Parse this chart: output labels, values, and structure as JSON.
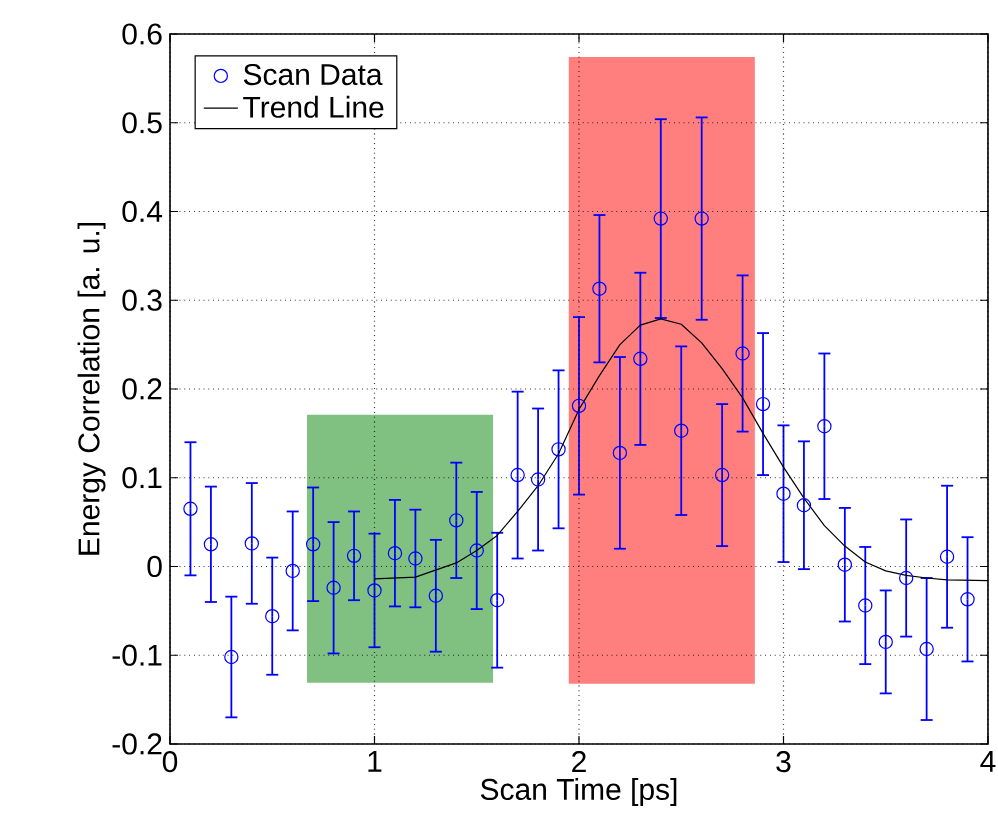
{
  "chart_data": {
    "type": "scatter",
    "xlabel": "Scan Time [ps]",
    "ylabel": "Energy Correlation [a. u.]",
    "xlim": [
      0,
      4
    ],
    "ylim": [
      -0.2,
      0.6
    ],
    "xticks": [
      0,
      1,
      2,
      3,
      4
    ],
    "yticks": [
      -0.2,
      -0.1,
      0,
      0.1,
      0.2,
      0.3,
      0.4,
      0.5,
      0.6
    ],
    "grid": true,
    "legend": "top left",
    "series": [
      {
        "type": "line",
        "color": "#80c080",
        "x": [
          0.67,
          1.58
        ],
        "values": [
          null,
          null
        ],
        "lower": [
          -0.131,
          -0.131
        ],
        "upper": [
          0.171,
          0.171
        ]
      },
      {
        "type": "line",
        "color": "#ff7f7f",
        "x": [
          1.95,
          2.86
        ],
        "values": [
          null,
          null
        ],
        "lower": [
          -0.132,
          -0.132
        ],
        "upper": [
          0.574,
          0.574
        ]
      },
      {
        "name": "Scan Data",
        "color": "#0000ff",
        "marker": "circle",
        "x": [
          0.1,
          0.2,
          0.3,
          0.4,
          0.5,
          0.6,
          0.7,
          0.8,
          0.9,
          1.0,
          1.1,
          1.2,
          1.3,
          1.4,
          1.5,
          1.6,
          1.7,
          1.8,
          1.9,
          2.0,
          2.1,
          2.2,
          2.3,
          2.4,
          2.5,
          2.6,
          2.7,
          2.8,
          2.9,
          3.0,
          3.1,
          3.2,
          3.3,
          3.4,
          3.5,
          3.6,
          3.7,
          3.8,
          3.9
        ],
        "values": [
          0.065,
          0.025,
          -0.102,
          0.026,
          -0.056,
          -0.005,
          0.025,
          -0.024,
          0.012,
          -0.027,
          0.015,
          0.009,
          -0.033,
          0.052,
          0.018,
          -0.038,
          0.103,
          0.098,
          0.132,
          0.181,
          0.313,
          0.128,
          0.234,
          0.392,
          0.153,
          0.392,
          0.103,
          0.24,
          0.183,
          0.082,
          0.069,
          0.158,
          0.002,
          -0.044,
          -0.085,
          -0.013,
          -0.093,
          0.011,
          -0.037
        ],
        "errors": [
          0.075,
          0.065,
          0.068,
          0.068,
          0.066,
          0.067,
          0.064,
          0.074,
          0.05,
          0.064,
          0.06,
          0.055,
          0.063,
          0.065,
          0.066,
          0.076,
          0.094,
          0.08,
          0.089,
          0.1,
          0.083,
          0.108,
          0.097,
          0.112,
          0.095,
          0.114,
          0.08,
          0.088,
          0.08,
          0.077,
          0.072,
          0.082,
          0.064,
          0.066,
          0.058,
          0.066,
          0.08,
          0.08,
          0.07
        ]
      },
      {
        "name": "Trend Line",
        "type": "line",
        "color": "#000000",
        "line_style": "solid",
        "x": [
          1.0,
          1.2,
          1.4,
          1.5,
          1.6,
          1.7,
          1.8,
          1.9,
          2.0,
          2.1,
          2.2,
          2.3,
          2.4,
          2.5,
          2.6,
          2.7,
          2.8,
          2.9,
          3.0,
          3.1,
          3.2,
          3.3,
          3.4,
          3.5,
          3.6,
          3.7,
          3.8,
          4.0
        ],
        "values": [
          -0.014,
          -0.012,
          0.004,
          0.018,
          0.035,
          0.062,
          0.091,
          0.127,
          0.177,
          0.215,
          0.25,
          0.272,
          0.279,
          0.273,
          0.252,
          0.223,
          0.19,
          0.15,
          0.112,
          0.077,
          0.046,
          0.023,
          0.005,
          -0.005,
          -0.01,
          -0.013,
          -0.015,
          -0.016
        ]
      }
    ]
  }
}
